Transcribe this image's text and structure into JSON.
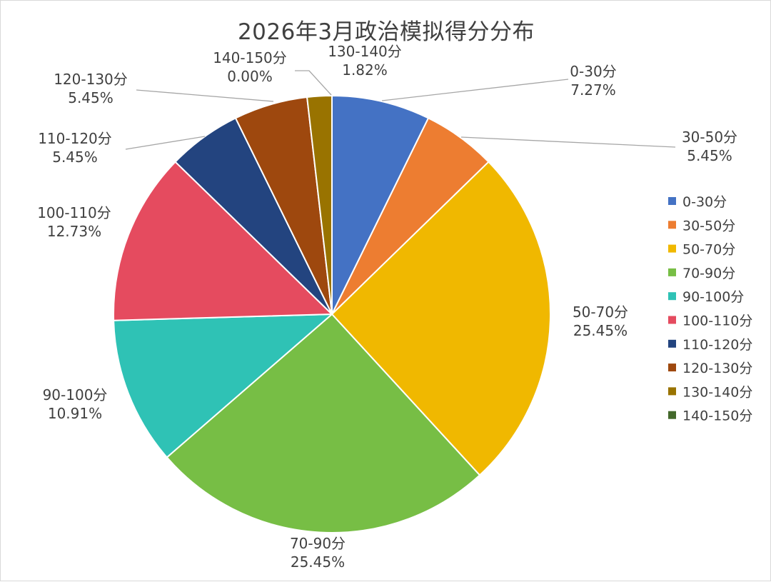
{
  "chart_data": {
    "type": "pie",
    "title": "2026年3月政治模拟得分分布",
    "categories": [
      "0-30分",
      "30-50分",
      "50-70分",
      "70-90分",
      "90-100分",
      "100-110分",
      "110-120分",
      "120-130分",
      "130-140分",
      "140-150分"
    ],
    "values": [
      7.27,
      5.45,
      25.45,
      25.45,
      10.91,
      12.73,
      5.45,
      5.45,
      1.82,
      0.0
    ],
    "value_labels": [
      "7.27%",
      "5.45%",
      "25.45%",
      "25.45%",
      "10.91%",
      "12.73%",
      "5.45%",
      "5.45%",
      "1.82%",
      "0.00%"
    ],
    "colors": [
      "#4472C4",
      "#ED7D31",
      "#F0B800",
      "#77BE45",
      "#2FC2B5",
      "#E54B5F",
      "#23447F",
      "#9E480E",
      "#997300",
      "#43682B"
    ],
    "legend_position": "right",
    "start_angle": "top",
    "direction": "clockwise"
  }
}
